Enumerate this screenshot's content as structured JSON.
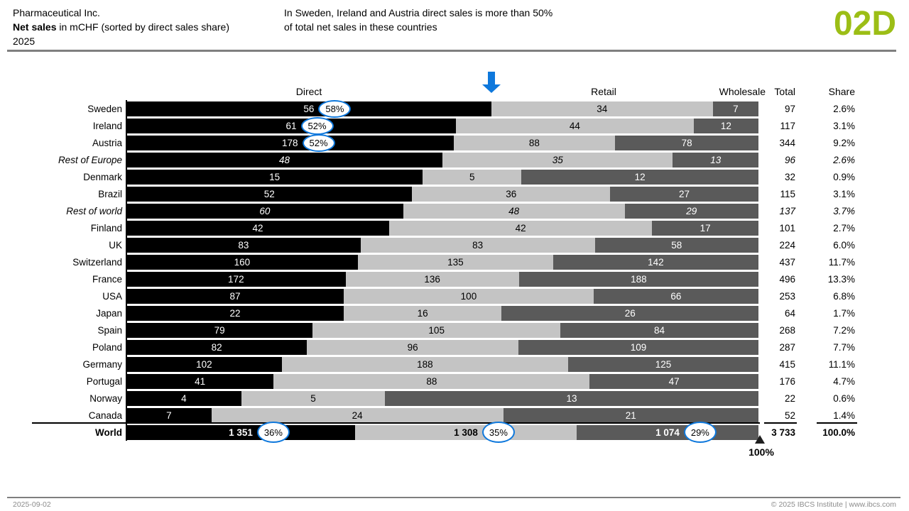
{
  "header": {
    "company": "Pharmaceutical Inc.",
    "title_bold": "Net sales",
    "title_rest": " in mCHF (sorted by direct sales share)",
    "period": "2025",
    "message_line1": "In Sweden, Ireland and Austria direct sales is more than 50%",
    "message_line2": "of total net sales in these countries",
    "page_id": "02D"
  },
  "colors": {
    "direct": "#000000",
    "retail": "#C4C4C4",
    "wholesale": "#5A5A5A",
    "accent_blue": "#0E78DC",
    "accent_green": "#9CBE16",
    "rule_gray": "#7F7F7F",
    "footer_text": "#8C8C8C"
  },
  "chart_data": {
    "type": "bar",
    "subtype": "horizontal-100%-stacked",
    "unit": "mCHF",
    "series_headers": [
      "Direct",
      "Retail",
      "Wholesale"
    ],
    "columns": {
      "total": "Total",
      "share": "Share"
    },
    "rows": [
      {
        "label": "Sweden",
        "values": [
          56,
          34,
          7
        ],
        "pcts": [
          "58%",
          null,
          null
        ],
        "total": "97",
        "share": "2.6%",
        "style": "normal"
      },
      {
        "label": "Ireland",
        "values": [
          61,
          44,
          12
        ],
        "pcts": [
          "52%",
          null,
          null
        ],
        "total": "117",
        "share": "3.1%",
        "style": "normal"
      },
      {
        "label": "Austria",
        "values": [
          178,
          88,
          78
        ],
        "pcts": [
          "52%",
          null,
          null
        ],
        "total": "344",
        "share": "9.2%",
        "style": "normal"
      },
      {
        "label": "Rest of Europe",
        "values": [
          48,
          35,
          13
        ],
        "pcts": null,
        "total": "96",
        "share": "2.6%",
        "style": "italic"
      },
      {
        "label": "Denmark",
        "values": [
          15,
          5,
          12
        ],
        "pcts": null,
        "total": "32",
        "share": "0.9%",
        "style": "normal"
      },
      {
        "label": "Brazil",
        "values": [
          52,
          36,
          27
        ],
        "pcts": null,
        "total": "115",
        "share": "3.1%",
        "style": "normal"
      },
      {
        "label": "Rest of world",
        "values": [
          60,
          48,
          29
        ],
        "pcts": null,
        "total": "137",
        "share": "3.7%",
        "style": "italic"
      },
      {
        "label": "Finland",
        "values": [
          42,
          42,
          17
        ],
        "pcts": null,
        "total": "101",
        "share": "2.7%",
        "style": "normal"
      },
      {
        "label": "UK",
        "values": [
          83,
          83,
          58
        ],
        "pcts": null,
        "total": "224",
        "share": "6.0%",
        "style": "normal"
      },
      {
        "label": "Switzerland",
        "values": [
          160,
          135,
          142
        ],
        "pcts": null,
        "total": "437",
        "share": "11.7%",
        "style": "normal"
      },
      {
        "label": "France",
        "values": [
          172,
          136,
          188
        ],
        "pcts": null,
        "total": "496",
        "share": "13.3%",
        "style": "normal"
      },
      {
        "label": "USA",
        "values": [
          87,
          100,
          66
        ],
        "pcts": null,
        "total": "253",
        "share": "6.8%",
        "style": "normal"
      },
      {
        "label": "Japan",
        "values": [
          22,
          16,
          26
        ],
        "pcts": null,
        "total": "64",
        "share": "1.7%",
        "style": "normal"
      },
      {
        "label": "Spain",
        "values": [
          79,
          105,
          84
        ],
        "pcts": null,
        "total": "268",
        "share": "7.2%",
        "style": "normal"
      },
      {
        "label": "Poland",
        "values": [
          82,
          96,
          109
        ],
        "pcts": null,
        "total": "287",
        "share": "7.7%",
        "style": "normal"
      },
      {
        "label": "Germany",
        "values": [
          102,
          188,
          125
        ],
        "pcts": null,
        "total": "415",
        "share": "11.1%",
        "style": "normal"
      },
      {
        "label": "Portugal",
        "values": [
          41,
          88,
          47
        ],
        "pcts": null,
        "total": "176",
        "share": "4.7%",
        "style": "normal"
      },
      {
        "label": "Norway",
        "values": [
          4,
          5,
          13
        ],
        "pcts": null,
        "total": "22",
        "share": "0.6%",
        "style": "normal"
      },
      {
        "label": "Canada",
        "values": [
          7,
          24,
          21
        ],
        "pcts": null,
        "total": "52",
        "share": "1.4%",
        "style": "normal"
      },
      {
        "label": "World",
        "values": [
          1351,
          1308,
          1074
        ],
        "value_labels": [
          "1 351",
          "1 308",
          "1 074"
        ],
        "pcts": [
          "36%",
          "35%",
          "29%"
        ],
        "total": "3 733",
        "share": "100.0%",
        "style": "bold"
      }
    ],
    "annotations": {
      "top_arrow_at_share_of_row": "Sweden direct 58%",
      "axis_max_label": "100%"
    }
  },
  "footer": {
    "date": "2025-09-02",
    "copyright": "© 2025 IBCS Institute | www.ibcs.com"
  }
}
